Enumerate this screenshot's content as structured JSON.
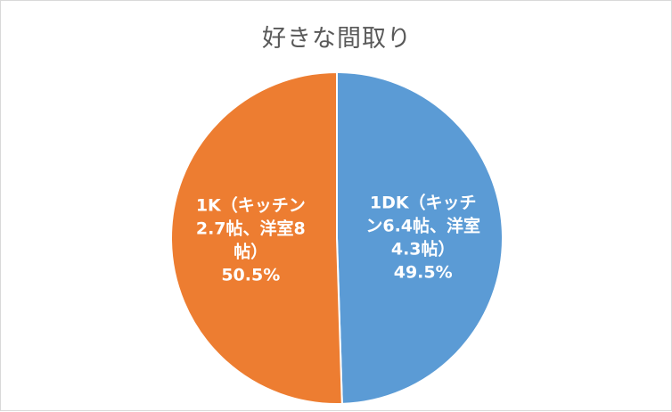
{
  "chart_data": {
    "type": "pie",
    "title": "好きな間取り",
    "slices": [
      {
        "label_lines": [
          "1DK（キッチ",
          "ン6.4帖、洋室",
          "4.3帖）"
        ],
        "percent_label": "49.5%",
        "value": 49.5,
        "color": "#5b9bd5"
      },
      {
        "label_lines": [
          "1K（キッチン",
          "2.7帖、洋室8",
          "帖）"
        ],
        "percent_label": "50.5%",
        "value": 50.5,
        "color": "#ed7d31"
      }
    ],
    "start_angle_deg": 0,
    "direction": "clockwise",
    "legend": "none"
  }
}
